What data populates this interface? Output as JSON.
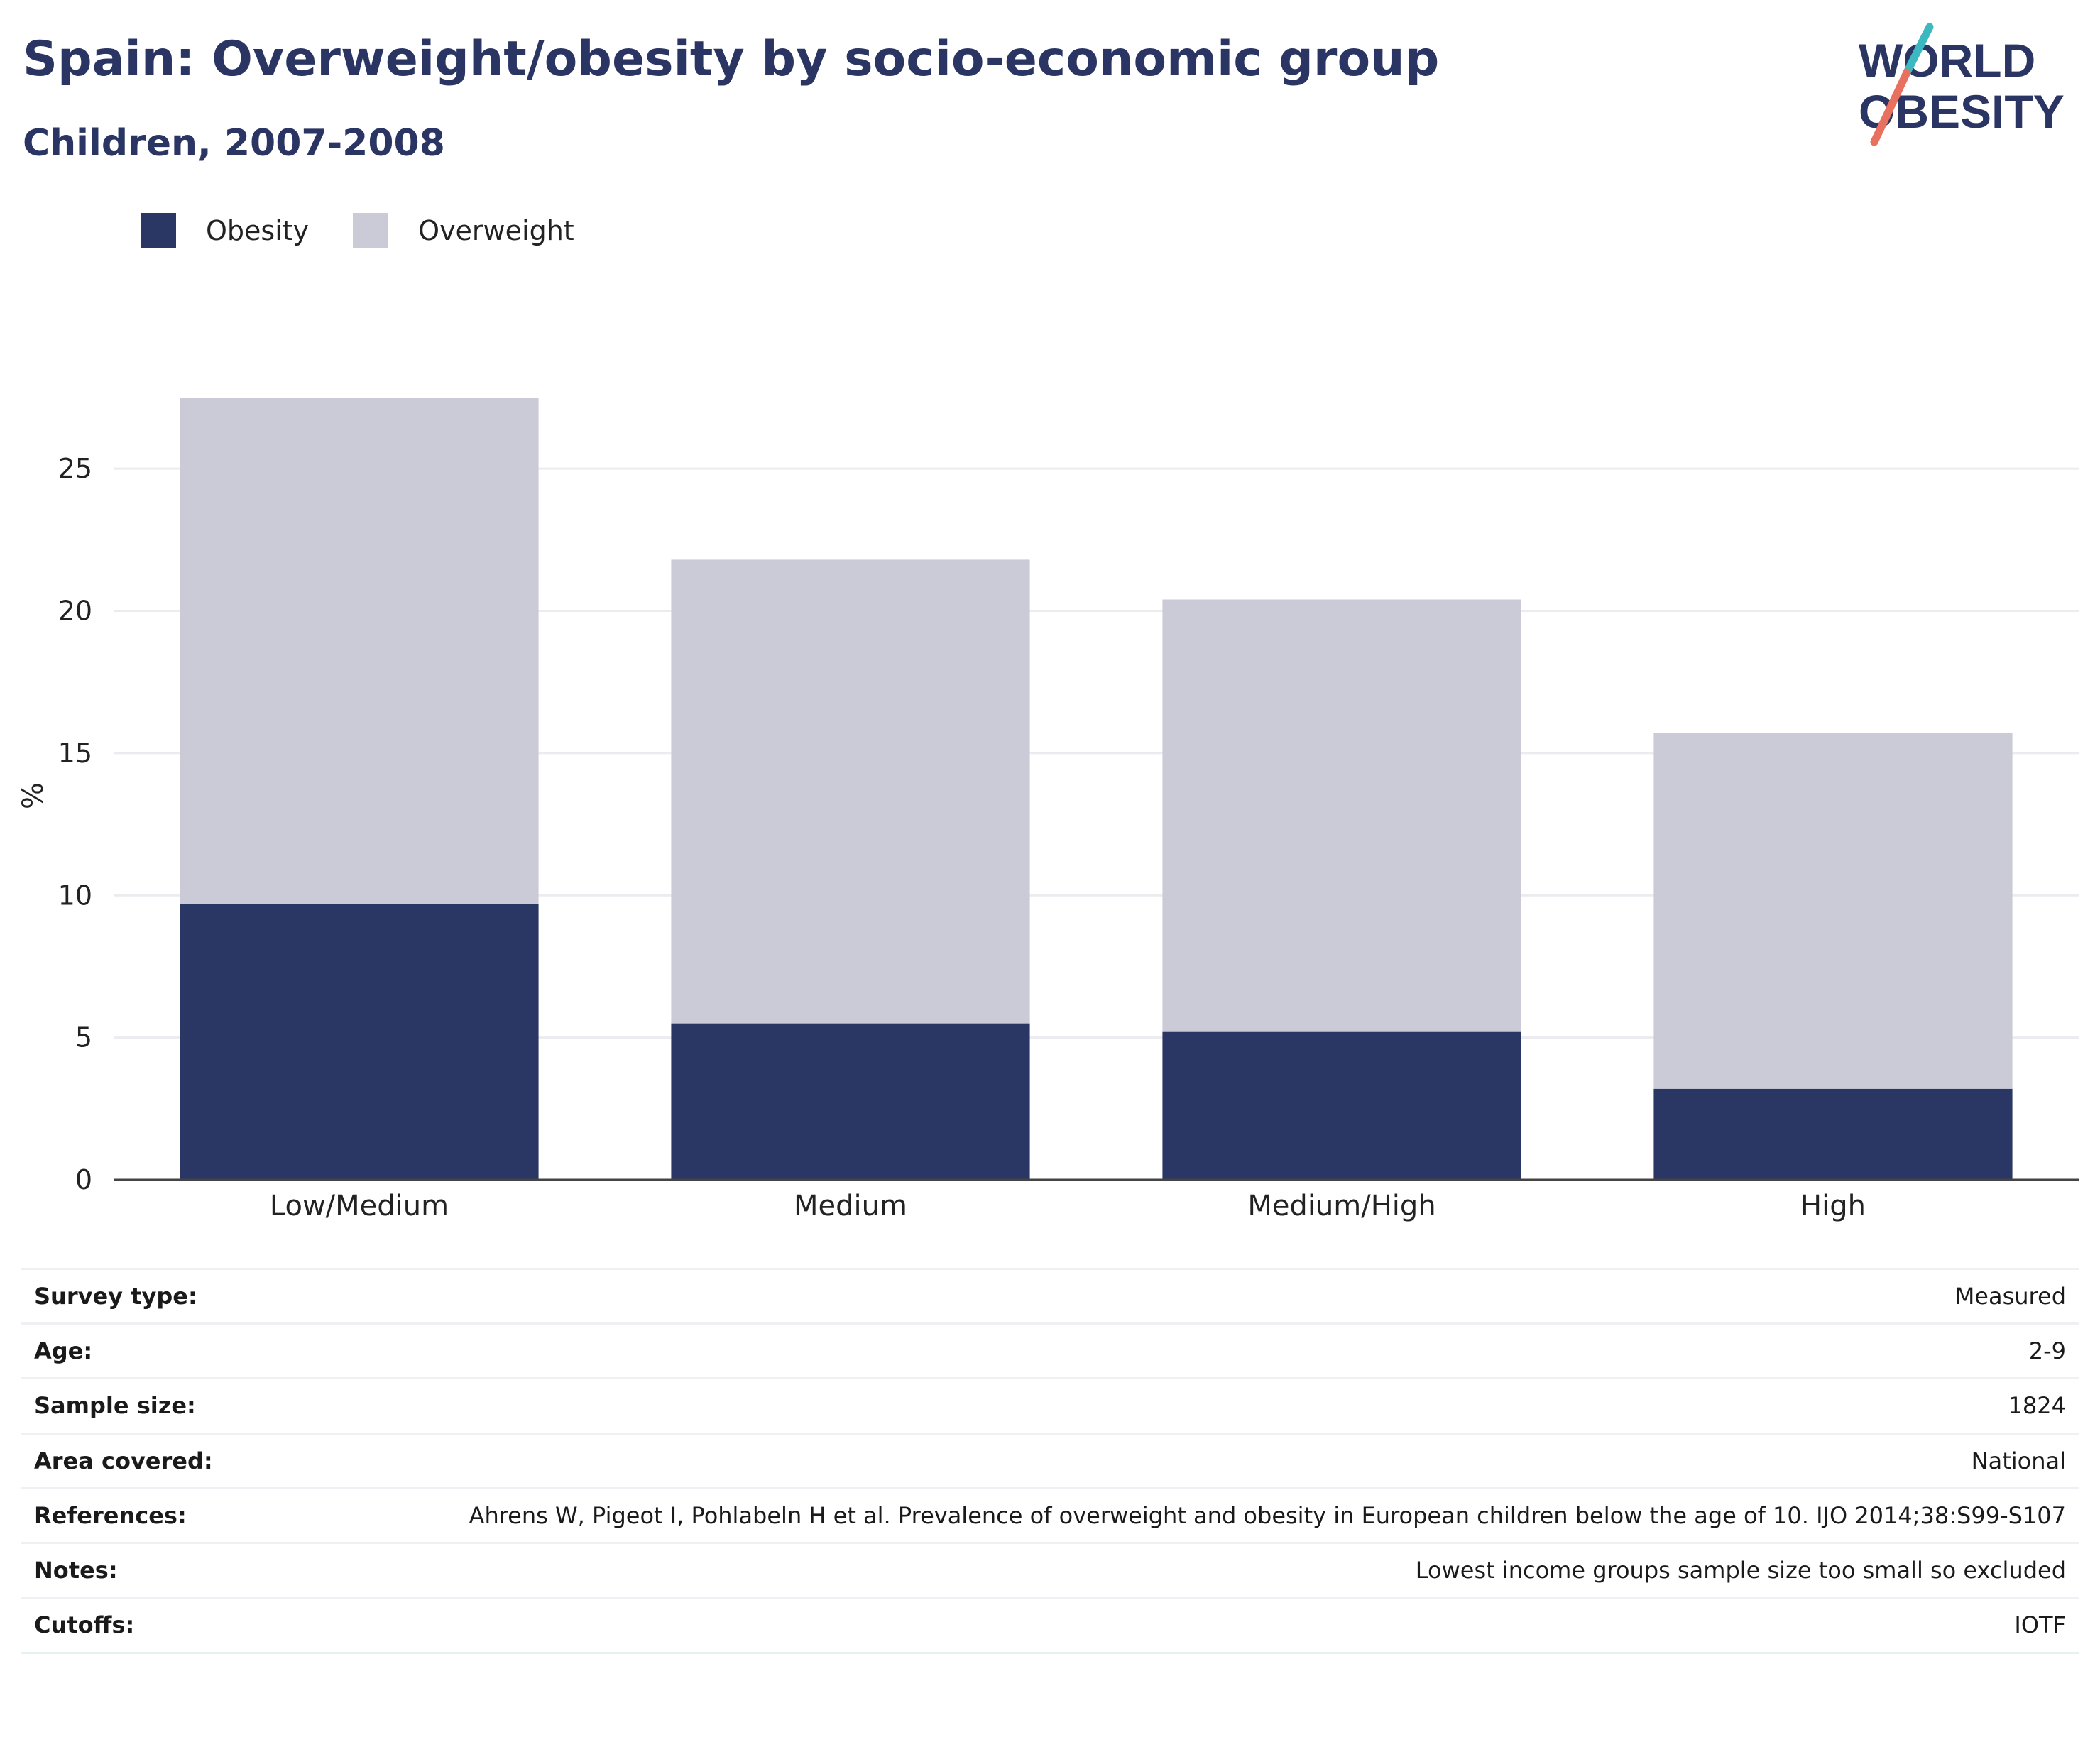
{
  "header": {
    "title": "Spain: Overweight/obesity by socio-economic group",
    "subtitle": "Children, 2007-2008"
  },
  "logo": {
    "line1": "WORLD",
    "line2": "OBESITY"
  },
  "legend": [
    {
      "label": "Obesity",
      "color": "#2a3663"
    },
    {
      "label": "Overweight",
      "color": "#cacbd7"
    }
  ],
  "chart_data": {
    "type": "bar",
    "stacked": true,
    "categories": [
      "Low/Medium",
      "Medium",
      "Medium/High",
      "High"
    ],
    "series": [
      {
        "name": "Obesity",
        "color": "#2a3663",
        "values": [
          9.7,
          5.5,
          5.2,
          3.2
        ]
      },
      {
        "name": "Overweight",
        "color": "#cacbd7",
        "values": [
          17.8,
          16.3,
          15.2,
          12.5
        ]
      }
    ],
    "ylabel": "%",
    "ylim": [
      0,
      27.5
    ],
    "yticks": [
      0,
      5,
      10,
      15,
      20,
      25
    ],
    "grid": true,
    "legend_position": "top-left"
  },
  "info": [
    {
      "key": "Survey type:",
      "value": "Measured"
    },
    {
      "key": "Age:",
      "value": "2-9"
    },
    {
      "key": "Sample size:",
      "value": "1824"
    },
    {
      "key": "Area covered:",
      "value": "National"
    },
    {
      "key": "References:",
      "value": "Ahrens W, Pigeot I, Pohlabeln H et al. Prevalence of overweight and obesity in European children below the age of 10. IJO 2014;38:S99-S107"
    },
    {
      "key": "Notes:",
      "value": "Lowest income groups sample size too small so excluded"
    },
    {
      "key": "Cutoffs:",
      "value": "IOTF"
    }
  ]
}
